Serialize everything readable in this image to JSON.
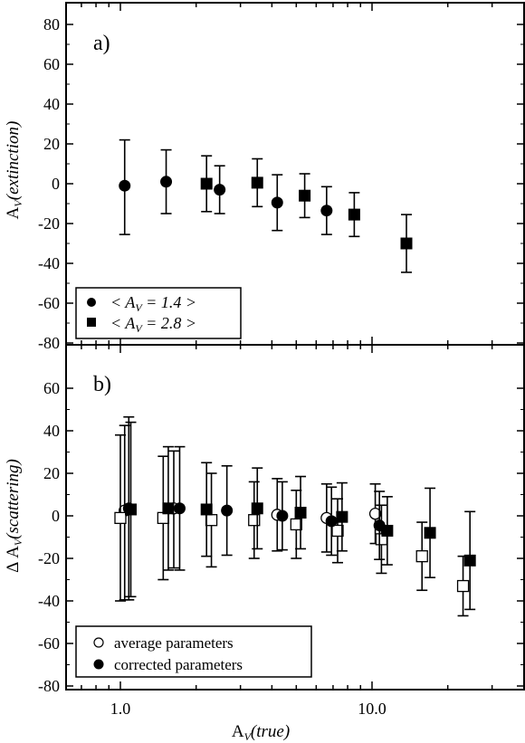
{
  "chart_data": [
    {
      "type": "scatter",
      "panel_label": "a)",
      "ylabel_main": "A",
      "ylabel_sub": "V",
      "ylabel_paren": "(extinction)",
      "x_scale": "log",
      "xlim": [
        0.62,
        40
      ],
      "ylim": [
        -80,
        90
      ],
      "yticks": [
        80,
        60,
        40,
        20,
        0,
        -20,
        -40,
        -60,
        -80
      ],
      "ytick_labels": [
        "80",
        "60",
        "40",
        "20",
        "0",
        "-20",
        "-40",
        "-60",
        "-80"
      ],
      "legend_position": "bottom-left",
      "series": [
        {
          "name": "< A_V = 1.4 >",
          "legend_math": [
            "< A",
            "V",
            " = 1.4 >"
          ],
          "marker": "circle-filled",
          "x": [
            1.04,
            1.52,
            2.48,
            4.2,
            6.6
          ],
          "y": [
            -1,
            1,
            -3,
            -9.5,
            -13.5
          ],
          "yerr_low": [
            24.5,
            16,
            12,
            14,
            12
          ],
          "yerr_high": [
            23,
            16,
            12,
            14,
            12
          ]
        },
        {
          "name": "< A_V = 2.8 >",
          "legend_math": [
            "< A",
            "V",
            " = 2.8 >"
          ],
          "marker": "square-filled",
          "x": [
            2.2,
            3.5,
            5.4,
            8.5,
            13.7
          ],
          "y": [
            0,
            0.5,
            -6,
            -15.5,
            -30
          ],
          "yerr_low": [
            14,
            12,
            11,
            11,
            14.5
          ],
          "yerr_high": [
            14,
            12,
            11,
            11,
            14.5
          ]
        }
      ]
    },
    {
      "type": "scatter",
      "panel_label": "b)",
      "ylabel_main": "Δ A",
      "ylabel_sub": "V",
      "ylabel_paren": "(scattering)",
      "xlabel_main": "A",
      "xlabel_sub": "V",
      "xlabel_paren": "(true)",
      "x_scale": "log",
      "xlim": [
        0.62,
        40
      ],
      "xticks": [
        1,
        10
      ],
      "xtick_labels": [
        "1.0",
        "10.0"
      ],
      "ylim": [
        -80,
        80
      ],
      "yticks": [
        60,
        40,
        20,
        0,
        -20,
        -40,
        -60,
        -80
      ],
      "ytick_labels": [
        "60",
        "40",
        "20",
        "0",
        "-20",
        "-40",
        "-60",
        "-80"
      ],
      "legend_position": "bottom-left",
      "legend": [
        "average parameters",
        "corrected parameters"
      ],
      "series": [
        {
          "name": "average parameters",
          "marker": "circle-open",
          "x": [
            1.04,
            1.63,
            4.2,
            6.6,
            10.3
          ],
          "y": [
            2.5,
            3.5,
            0.5,
            -1,
            1
          ],
          "yerr_low": [
            42,
            28,
            17,
            16,
            14
          ],
          "yerr_high": [
            40,
            27,
            17,
            16,
            14
          ]
        },
        {
          "name": "",
          "marker": "square-open",
          "x": [
            1.0,
            1.48,
            2.3,
            3.4,
            5.0,
            7.3,
            10.9,
            15.8,
            23.0
          ],
          "y": [
            -1,
            -1,
            -2,
            -2,
            -4,
            -7,
            -11,
            -19,
            -33
          ],
          "yerr_low": [
            39,
            29,
            22,
            18,
            16,
            15,
            16,
            16,
            14
          ],
          "yerr_high": [
            39,
            29,
            22,
            18,
            16,
            15,
            16,
            16,
            14
          ]
        },
        {
          "name": "corrected parameters",
          "marker": "circle-filled",
          "x": [
            1.08,
            1.72,
            2.65,
            4.4,
            6.9,
            10.7
          ],
          "y": [
            3.5,
            3.5,
            2.5,
            0,
            -2.5,
            -4.5
          ],
          "yerr_low": [
            43,
            29,
            21,
            16,
            16,
            16
          ],
          "yerr_high": [
            43,
            29,
            21,
            16,
            16,
            16
          ]
        },
        {
          "name": "",
          "marker": "square-filled",
          "x": [
            1.1,
            1.55,
            2.2,
            3.5,
            5.2,
            7.6,
            11.5,
            17.0,
            24.5
          ],
          "y": [
            3,
            3.5,
            3,
            3.5,
            1.5,
            -0.5,
            -7,
            -8,
            -21
          ],
          "yerr_low": [
            41,
            29,
            22,
            19,
            17,
            16,
            16,
            21,
            23
          ],
          "yerr_high": [
            41,
            29,
            22,
            19,
            17,
            16,
            16,
            21,
            23
          ]
        }
      ]
    }
  ]
}
